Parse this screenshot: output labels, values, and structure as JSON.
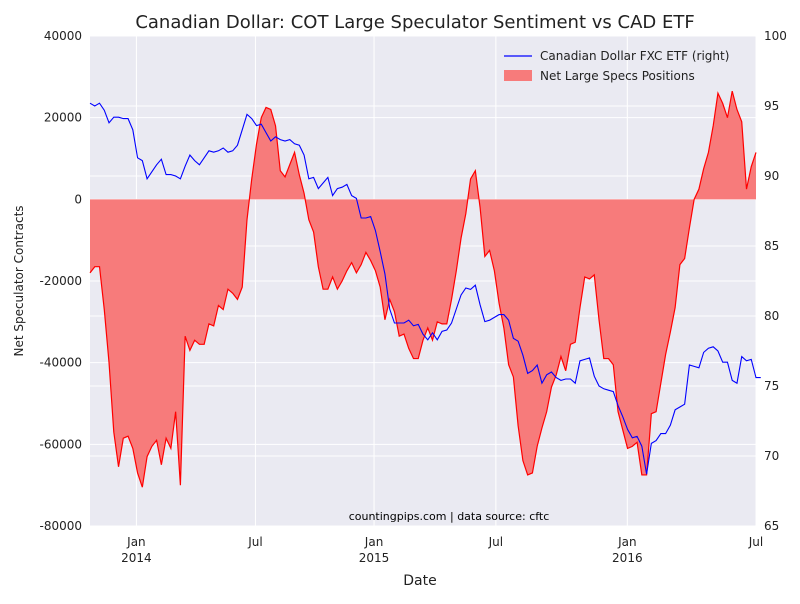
{
  "chart_data": {
    "type": "area",
    "title": "Canadian Dollar: COT Large Speculator Sentiment vs CAD ETF",
    "xlabel": "Date",
    "ylabel": "Net Speculator Contracts",
    "ylim_left": [
      -80000,
      40000
    ],
    "ylim_right": [
      65,
      100
    ],
    "left_ticks": [
      "40000",
      "20000",
      "0",
      "-20000",
      "-40000",
      "-60000",
      "-80000"
    ],
    "right_ticks": [
      "100",
      "95",
      "90",
      "85",
      "80",
      "75",
      "70",
      "65"
    ],
    "x_ticks": [
      {
        "label": "Jan",
        "sublabel": "2014"
      },
      {
        "label": "Jul",
        "sublabel": ""
      },
      {
        "label": "Jan",
        "sublabel": "2015"
      },
      {
        "label": "Jul",
        "sublabel": ""
      },
      {
        "label": "Jan",
        "sublabel": "2016"
      },
      {
        "label": "Jul",
        "sublabel": ""
      }
    ],
    "grid": true,
    "legend_position": "top-right",
    "annotation": "countingpips.com | data source: cftc",
    "colors": {
      "background": "#eaeaf2",
      "grid": "#ffffff",
      "area_fill": "#f77b7b",
      "area_edge": "#ff0000",
      "etf_line": "#0000ff"
    },
    "series": [
      {
        "name": "Net Large Specs Positions",
        "axis": "left",
        "values": [
          -18000,
          -16500,
          -16500,
          -27000,
          -40000,
          -57000,
          -65500,
          -58500,
          -58000,
          -61000,
          -67000,
          -70500,
          -63000,
          -60500,
          -59000,
          -65000,
          -58500,
          -61000,
          -52000,
          -70000,
          -33500,
          -37000,
          -34500,
          -35500,
          -35500,
          -30500,
          -31000,
          -26000,
          -27000,
          -22000,
          -23000,
          -24500,
          -21500,
          -5000,
          5000,
          13500,
          20000,
          22500,
          22000,
          18000,
          7000,
          5500,
          8500,
          11500,
          6000,
          1500,
          -5000,
          -8000,
          -16500,
          -22000,
          -22000,
          -19000,
          -22000,
          -20000,
          -17500,
          -15500,
          -18000,
          -16000,
          -13000,
          -15000,
          -17500,
          -21500,
          -29500,
          -24500,
          -27500,
          -33500,
          -33000,
          -36500,
          -39000,
          -39000,
          -34500,
          -31500,
          -34500,
          -30000,
          -30500,
          -30500,
          -24500,
          -17500,
          -9500,
          -3500,
          5000,
          7000,
          -2000,
          -14000,
          -12500,
          -17500,
          -25500,
          -31500,
          -40500,
          -43500,
          -55500,
          -64000,
          -67500,
          -67000,
          -60500,
          -56000,
          -52000,
          -46000,
          -43000,
          -38500,
          -42000,
          -35500,
          -35000,
          -26500,
          -19000,
          -19500,
          -18500,
          -29500,
          -39000,
          -39000,
          -40500,
          -52000,
          -56500,
          -61000,
          -60500,
          -59500,
          -67500,
          -67500,
          -52500,
          -52000,
          -45000,
          -38000,
          -32500,
          -26500,
          -16000,
          -14500,
          -7000,
          0,
          2500,
          7500,
          11500,
          18000,
          26000,
          23500,
          20000,
          26500,
          22000,
          19000,
          2500,
          8000,
          11500
        ]
      },
      {
        "name": "Canadian Dollar FXC ETF (right)",
        "axis": "right",
        "values": [
          95.2,
          95.0,
          95.2,
          94.7,
          93.8,
          94.2,
          94.2,
          94.1,
          94.1,
          93.3,
          91.3,
          91.1,
          89.8,
          90.3,
          90.8,
          91.2,
          90.1,
          90.1,
          90.0,
          89.8,
          90.7,
          91.5,
          91.1,
          90.8,
          91.3,
          91.8,
          91.7,
          91.8,
          92.0,
          91.7,
          91.8,
          92.2,
          93.3,
          94.4,
          94.1,
          93.6,
          93.7,
          93.1,
          92.5,
          92.8,
          92.6,
          92.5,
          92.6,
          92.3,
          92.2,
          91.5,
          89.8,
          89.9,
          89.1,
          89.5,
          89.9,
          88.6,
          89.1,
          89.2,
          89.4,
          88.6,
          88.4,
          87.0,
          87.0,
          87.1,
          86.1,
          84.6,
          83.0,
          80.5,
          79.5,
          79.5,
          79.5,
          79.7,
          79.3,
          79.4,
          78.7,
          78.3,
          78.8,
          78.3,
          78.9,
          79.0,
          79.5,
          80.5,
          81.5,
          82.0,
          81.9,
          82.2,
          80.8,
          79.6,
          79.7,
          79.9,
          80.1,
          80.1,
          79.7,
          78.4,
          78.2,
          77.2,
          75.9,
          76.1,
          76.5,
          75.2,
          75.8,
          76.0,
          75.6,
          75.4,
          75.5,
          75.5,
          75.2,
          76.8,
          76.9,
          77.0,
          75.7,
          75.0,
          74.8,
          74.7,
          74.6,
          73.6,
          72.8,
          71.9,
          71.3,
          71.4,
          70.7,
          68.7,
          70.9,
          71.1,
          71.6,
          71.6,
          72.2,
          73.3,
          73.5,
          73.7,
          76.5,
          76.4,
          76.3,
          77.4,
          77.7,
          77.8,
          77.5,
          76.7,
          76.7,
          75.4,
          75.2,
          77.1,
          76.8,
          76.9,
          75.6,
          75.6
        ]
      }
    ]
  }
}
